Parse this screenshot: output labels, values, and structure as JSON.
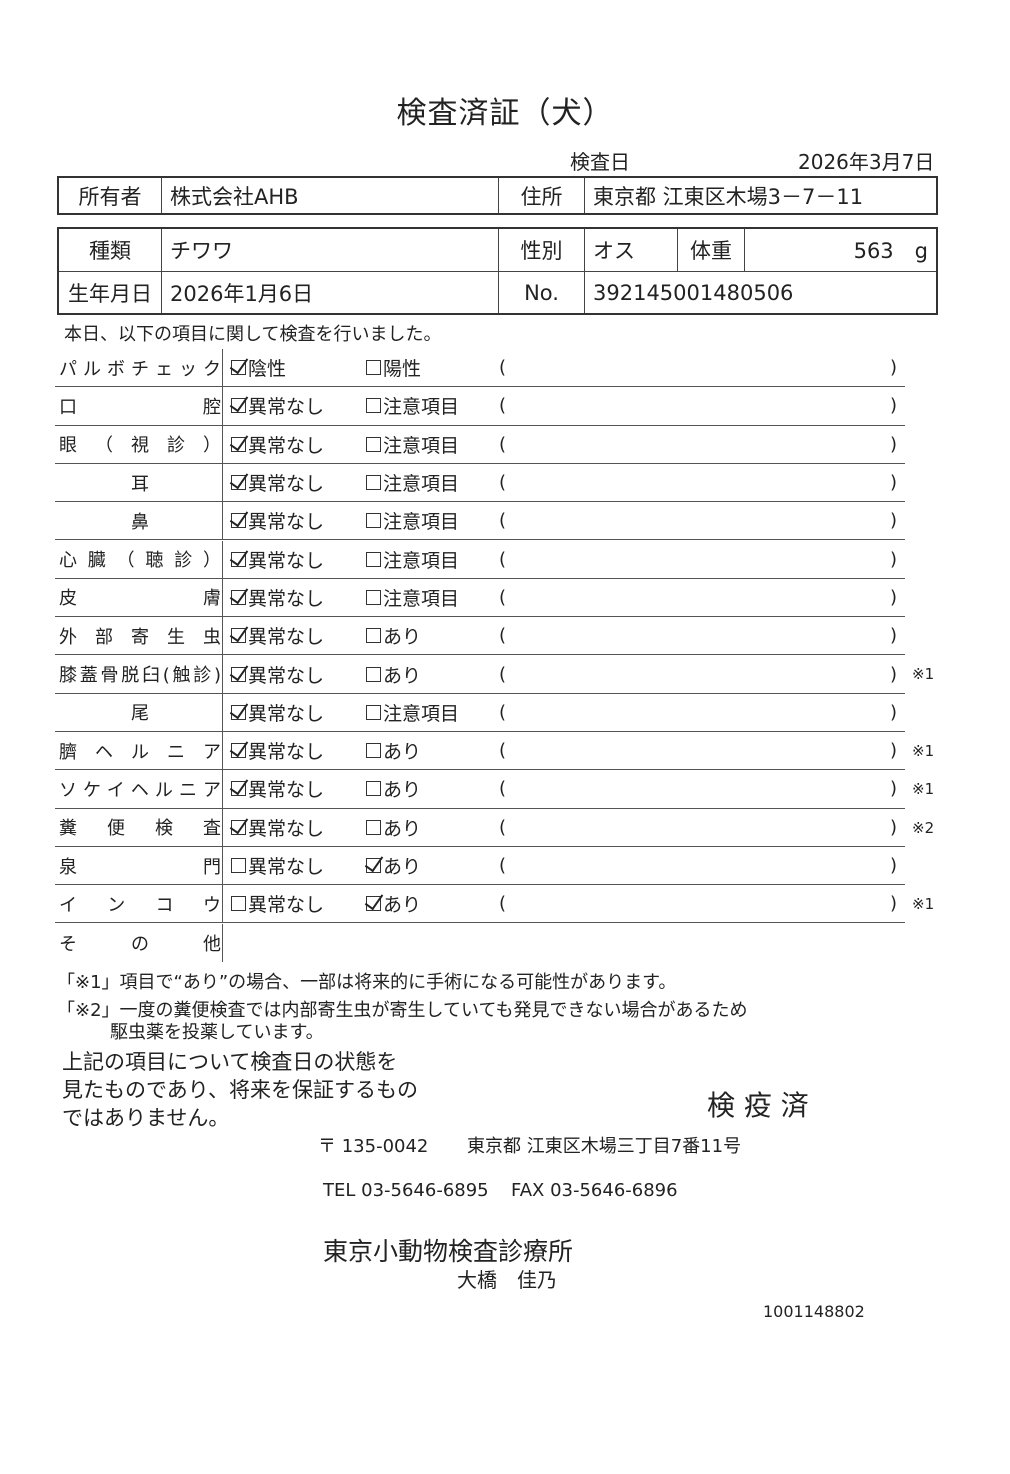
{
  "title": "検査済証（犬）",
  "exam_date_label": "検査日",
  "exam_date": "2026年3月7日",
  "owner": {
    "label": "所有者",
    "value": "株式会社AHB",
    "address_label": "住所",
    "address": "東京都 江東区木場3－7－11"
  },
  "animal": {
    "breed_label": "種類",
    "breed": "チワワ",
    "sex_label": "性別",
    "sex": "オス",
    "weight_label": "体重",
    "weight": "563　g",
    "birth_label": "生年月日",
    "birth": "2026年1月6日",
    "no_label": "No.",
    "no": "392145001480506"
  },
  "intro": "本日、以下の項目に関して検査を行いました。",
  "items": [
    {
      "label": "パルボチェック",
      "opt1": "陰性",
      "opt2": "陽性",
      "checked": 1,
      "note": ""
    },
    {
      "label": "口腔",
      "opt1": "異常なし",
      "opt2": "注意項目",
      "checked": 1,
      "note": ""
    },
    {
      "label": "眼（視診）",
      "opt1": "異常なし",
      "opt2": "注意項目",
      "checked": 1,
      "note": ""
    },
    {
      "label": "耳",
      "opt1": "異常なし",
      "opt2": "注意項目",
      "checked": 1,
      "note": ""
    },
    {
      "label": "鼻",
      "opt1": "異常なし",
      "opt2": "注意項目",
      "checked": 1,
      "note": ""
    },
    {
      "label": "心臓（聴診）",
      "opt1": "異常なし",
      "opt2": "注意項目",
      "checked": 1,
      "note": ""
    },
    {
      "label": "皮膚",
      "opt1": "異常なし",
      "opt2": "注意項目",
      "checked": 1,
      "note": ""
    },
    {
      "label": "外部寄生虫",
      "opt1": "異常なし",
      "opt2": "あり",
      "checked": 1,
      "note": ""
    },
    {
      "label": "膝蓋骨脱臼(触診)",
      "opt1": "異常なし",
      "opt2": "あり",
      "checked": 1,
      "note": "※1"
    },
    {
      "label": "尾",
      "opt1": "異常なし",
      "opt2": "注意項目",
      "checked": 1,
      "note": ""
    },
    {
      "label": "臍ヘルニア",
      "opt1": "異常なし",
      "opt2": "あり",
      "checked": 1,
      "note": "※1"
    },
    {
      "label": "ソケイヘルニア",
      "opt1": "異常なし",
      "opt2": "あり",
      "checked": 1,
      "note": "※1"
    },
    {
      "label": "糞便検査",
      "opt1": "異常なし",
      "opt2": "あり",
      "checked": 1,
      "note": "※2"
    },
    {
      "label": "泉門",
      "opt1": "異常なし",
      "opt2": "あり",
      "checked": 2,
      "note": ""
    },
    {
      "label": "インコウ",
      "opt1": "異常なし",
      "opt2": "あり",
      "checked": 2,
      "note": "※1"
    }
  ],
  "other_label": "その他",
  "paren_open": "(",
  "paren_close": ")",
  "footnote1": "「※1」項目で“あり”の場合、一部は将来的に手術になる可能性があります。",
  "footnote2a": "「※2」一度の糞便検査では内部寄生虫が寄生していても発見できない場合があるため",
  "footnote2b": "駆虫薬を投薬しています。",
  "disclaimer": [
    "上記の項目について検査日の状態を",
    "見たものであり、将来を保証するもの",
    "ではありません。"
  ],
  "stamp": "検 疫 済",
  "postal": "〒 135-0042",
  "clinic_address": "東京都 江東区木場三丁目7番11号",
  "tel": "TEL 03-5646-6895",
  "fax": "FAX 03-5646-6896",
  "clinic_name": "東京小動物検査診療所",
  "doctor": "大橋　佳乃",
  "doc_number": "1001148802"
}
